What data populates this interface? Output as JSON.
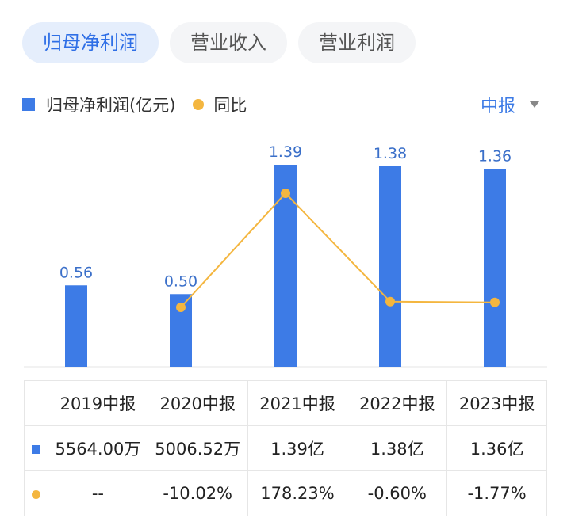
{
  "tabs": [
    {
      "label": "归母净利润",
      "active": true
    },
    {
      "label": "营业收入",
      "active": false
    },
    {
      "label": "营业利润",
      "active": false
    }
  ],
  "legend": {
    "bar_label": "归母净利润(亿元)",
    "line_label": "同比"
  },
  "period_select": {
    "value": "中报"
  },
  "colors": {
    "bar": "#3d7be6",
    "line": "#f4b63f",
    "positive": "#e04b4b",
    "negative": "#2aa36b"
  },
  "chart_data": {
    "type": "bar",
    "categories": [
      "2019中报",
      "2020中报",
      "2021中报",
      "2022中报",
      "2023中报"
    ],
    "series": [
      {
        "name": "归母净利润(亿元)",
        "type": "bar",
        "values": [
          0.56,
          0.5,
          1.39,
          1.38,
          1.36
        ],
        "labels": [
          "0.56",
          "0.50",
          "1.39",
          "1.38",
          "1.36"
        ]
      },
      {
        "name": "同比",
        "type": "line",
        "values": [
          null,
          -10.02,
          178.23,
          -0.6,
          -1.77
        ]
      }
    ],
    "grid": false
  },
  "table": {
    "headers": [
      "2019中报",
      "2020中报",
      "2021中报",
      "2022中报",
      "2023中报"
    ],
    "profit_row": [
      "5564.00万",
      "5006.52万",
      "1.39亿",
      "1.38亿",
      "1.36亿"
    ],
    "yoy_row": [
      "--",
      "-10.02%",
      "178.23%",
      "-0.60%",
      "-1.77%"
    ]
  }
}
